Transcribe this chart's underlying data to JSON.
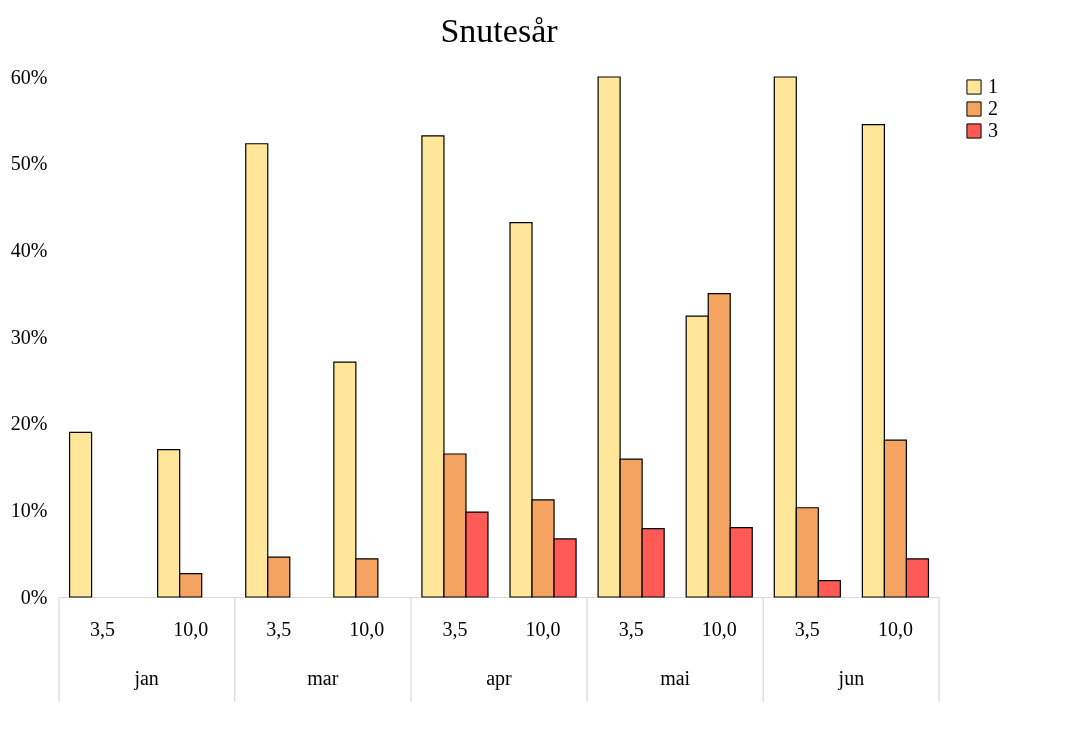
{
  "chart_data": {
    "type": "bar",
    "title": "Snutesår",
    "categories": [
      "3,5",
      "10,0",
      "3,5",
      "10,0",
      "3,5",
      "10,0",
      "3,5",
      "10,0",
      "3,5",
      "10,0"
    ],
    "annotations": [
      "jan",
      "mar",
      "apr",
      "mai",
      "jun"
    ],
    "series": [
      {
        "name": "1",
        "color": "#ffe699",
        "values": [
          19.0,
          17.0,
          52.3,
          27.1,
          53.2,
          43.2,
          60.0,
          32.4,
          60.0,
          54.5
        ]
      },
      {
        "name": "2",
        "color": "#f4a460",
        "values": [
          null,
          2.7,
          4.6,
          4.4,
          16.5,
          11.2,
          15.9,
          35.0,
          10.3,
          18.1
        ]
      },
      {
        "name": "3",
        "color": "#ff5a55",
        "values": [
          null,
          null,
          null,
          null,
          9.8,
          6.7,
          7.9,
          8.0,
          1.9,
          4.4
        ]
      }
    ],
    "ylim": [
      0,
      60
    ],
    "yticks": [
      {
        "value": 0,
        "label": "0%"
      },
      {
        "value": 10,
        "label": "10%"
      },
      {
        "value": 20,
        "label": "20%"
      },
      {
        "value": 30,
        "label": "30%"
      },
      {
        "value": 40,
        "label": "40%"
      },
      {
        "value": 50,
        "label": "50%"
      },
      {
        "value": 60,
        "label": "60%"
      }
    ],
    "grid": false,
    "legend": "right"
  }
}
